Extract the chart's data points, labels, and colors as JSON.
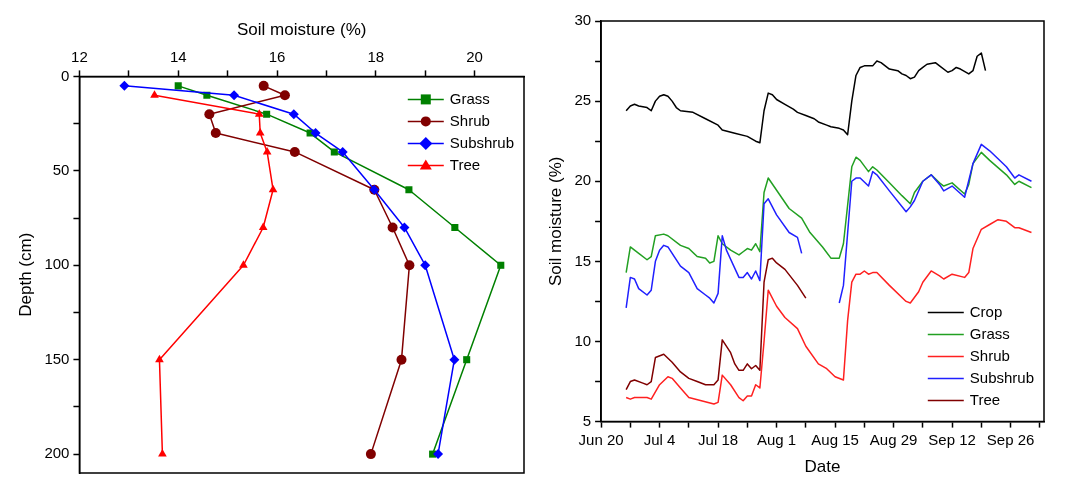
{
  "chart_data": [
    {
      "type": "line",
      "xlabel": "Soil moisture (%)",
      "ylabel": "Depth (cm)",
      "xlim": [
        12,
        21
      ],
      "xticks": [
        12,
        {
          "value": 13,
          "label": null
        },
        14,
        {
          "value": 15,
          "label": null
        },
        16,
        {
          "value": 17,
          "label": null
        },
        18,
        {
          "value": 19,
          "label": null
        },
        20
      ],
      "ylim": [
        210,
        0
      ],
      "yticks": [
        0,
        {
          "value": 25,
          "label": null
        },
        50,
        {
          "value": 75,
          "label": null
        },
        100,
        {
          "value": 125,
          "label": null
        },
        150,
        {
          "value": 175,
          "label": null
        },
        200
      ],
      "grid": false,
      "legend": "top right",
      "line_style": "solid",
      "series": [
        {
          "name": "Grass",
          "color": "#008000",
          "marker": "square",
          "x": [
            14.0,
            14.58,
            15.79,
            16.67,
            17.16,
            18.67,
            19.6,
            20.53,
            19.84,
            19.15
          ],
          "values": [
            5,
            10,
            20,
            30,
            40,
            60,
            80,
            100,
            150,
            200
          ]
        },
        {
          "name": "Shrub",
          "color": "#800000",
          "marker": "circle",
          "x": [
            15.73,
            16.16,
            14.63,
            14.76,
            16.36,
            17.97,
            18.34,
            18.68,
            18.52,
            17.9
          ],
          "values": [
            5,
            10,
            20,
            30,
            40,
            60,
            80,
            100,
            150,
            200
          ]
        },
        {
          "name": "Subshrub",
          "color": "#0000ff",
          "marker": "diamond",
          "x": [
            12.91,
            15.13,
            16.34,
            16.78,
            17.33,
            17.97,
            18.58,
            19.0,
            19.59,
            19.26
          ],
          "values": [
            5,
            10,
            20,
            30,
            40,
            60,
            80,
            100,
            150,
            200
          ]
        },
        {
          "name": "Tree",
          "color": "#ff0000",
          "marker": "triangle",
          "x": [
            13.52,
            15.64,
            15.66,
            15.8,
            15.92,
            15.72,
            15.32,
            13.62,
            13.68
          ],
          "values": [
            10,
            20,
            30,
            40,
            60,
            80,
            100,
            150,
            200
          ]
        }
      ]
    },
    {
      "type": "line",
      "xlabel": "Date",
      "ylabel": "Soil moisture (%)",
      "xlim": [
        "--06-20",
        "--10-04"
      ],
      "xticks": [
        {
          "value": "--06-20",
          "label": "Jun 20"
        },
        {
          "value": "--06-27",
          "label": null
        },
        {
          "value": "--07-04",
          "label": "Jul 4"
        },
        {
          "value": "--07-11",
          "label": null
        },
        {
          "value": "--07-18",
          "label": "Jul 18"
        },
        {
          "value": "--07-25",
          "label": null
        },
        {
          "value": "--08-01",
          "label": "Aug 1"
        },
        {
          "value": "--08-08",
          "label": null
        },
        {
          "value": "--08-15",
          "label": "Aug 15"
        },
        {
          "value": "--08-22",
          "label": null
        },
        {
          "value": "--08-29",
          "label": "Aug 29"
        },
        {
          "value": "--09-05",
          "label": null
        },
        {
          "value": "--09-12",
          "label": "Sep 12"
        },
        {
          "value": "--09-19",
          "label": null
        },
        {
          "value": "--09-26",
          "label": "Sep 26"
        },
        {
          "value": "--10-03",
          "label": null
        }
      ],
      "ylim": [
        5,
        30
      ],
      "yticks": [
        5,
        {
          "value": 7.5,
          "label": null
        },
        10,
        {
          "value": 12.5,
          "label": null
        },
        15,
        {
          "value": 17.5,
          "label": null
        },
        20,
        {
          "value": 22.5,
          "label": null
        },
        25,
        {
          "value": 27.5,
          "label": null
        },
        30
      ],
      "grid": false,
      "legend": "bottom right",
      "marker": "none",
      "line_style": "solid",
      "series": [
        {
          "name": "Crop",
          "color": "#000000",
          "x": [
            "--06-26",
            "--06-27",
            "--06-28",
            "--06-29",
            "--07-01",
            "--07-02",
            "--07-03",
            "--07-04",
            "--07-05",
            "--07-06",
            "--07-07",
            "--07-08",
            "--07-09",
            "--07-12",
            "--07-15",
            "--07-18",
            "--07-19",
            "--07-22",
            "--07-25",
            "--07-27",
            "--07-28",
            "--07-29",
            "--07-30",
            "--07-31",
            "--08-01",
            "--08-03",
            "--08-05",
            "--08-06",
            "--08-08",
            "--08-10",
            "--08-11",
            "--08-13",
            "--08-14",
            "--08-16",
            "--08-17",
            "--08-18",
            "--08-19",
            "--08-20",
            "--08-21",
            "--08-22",
            "--08-24",
            "--08-25",
            "--08-26",
            "--08-27",
            "--08-28",
            "--08-30",
            "--08-31",
            "--09-01",
            "--09-02",
            "--09-03",
            "--09-04",
            "--09-05",
            "--09-06",
            "--09-08",
            "--09-09",
            "--09-11",
            "--09-12",
            "--09-13",
            "--09-14",
            "--09-16",
            "--09-17",
            "--09-18",
            "--09-19",
            "--09-20"
          ],
          "values": [
            24.4,
            24.7,
            24.8,
            24.7,
            24.6,
            24.4,
            25.0,
            25.3,
            25.4,
            25.3,
            25.0,
            24.6,
            24.4,
            24.3,
            23.9,
            23.5,
            23.2,
            23.0,
            22.8,
            22.5,
            22.4,
            24.4,
            25.5,
            25.4,
            25.1,
            24.8,
            24.5,
            24.3,
            24.1,
            23.9,
            23.7,
            23.5,
            23.4,
            23.3,
            23.2,
            22.9,
            25.0,
            26.6,
            27.1,
            27.2,
            27.2,
            27.5,
            27.4,
            27.2,
            27.0,
            26.9,
            26.7,
            26.6,
            26.4,
            26.5,
            26.9,
            27.1,
            27.3,
            27.4,
            27.2,
            26.8,
            26.9,
            27.1,
            27.0,
            26.7,
            26.9,
            27.8,
            28.0,
            26.9
          ]
        },
        {
          "name": "Grass",
          "color": "#22a022",
          "x": [
            "--06-26",
            "--06-27",
            "--06-28",
            "--07-01",
            "--07-02",
            "--07-03",
            "--07-05",
            "--07-06",
            "--07-09",
            "--07-11",
            "--07-13",
            "--07-15",
            "--07-16",
            "--07-17",
            "--07-18",
            "--07-19",
            "--07-21",
            "--07-23",
            "--07-24",
            "--07-25",
            "--07-26",
            "--07-27",
            "--07-28",
            "--07-29",
            "--07-30",
            "--08-04",
            "--08-07",
            "--08-09",
            "--08-12",
            "--08-14",
            "--08-16",
            "--08-17",
            "--08-19",
            "--08-20",
            "--08-21",
            "--08-23",
            "--08-24",
            "--08-25",
            "--08-28",
            "--08-31",
            "--09-02",
            "--09-03",
            "--09-05",
            "--09-07",
            "--09-09",
            "--09-10",
            "--09-12",
            "--09-15",
            "--09-16",
            "--09-17",
            "--09-19",
            "--09-21",
            "--09-25",
            "--09-27",
            "--09-28",
            "--10-01"
          ],
          "values": [
            14.3,
            15.9,
            15.7,
            15.1,
            15.3,
            16.6,
            16.7,
            16.6,
            16.0,
            15.8,
            15.3,
            15.2,
            14.9,
            15.0,
            16.6,
            16.1,
            15.7,
            15.4,
            15.6,
            15.8,
            15.7,
            16.1,
            15.6,
            19.3,
            20.2,
            18.3,
            17.7,
            16.8,
            15.9,
            15.2,
            15.2,
            16.1,
            20.9,
            21.5,
            21.3,
            20.6,
            20.9,
            20.7,
            19.9,
            19.1,
            18.6,
            19.3,
            20.0,
            20.4,
            19.9,
            19.7,
            19.9,
            19.2,
            19.8,
            21.1,
            21.8,
            21.3,
            20.4,
            19.8,
            20.0,
            19.6
          ]
        },
        {
          "name": "Shrub",
          "color": "#ff2020",
          "x": [
            "--06-26",
            "--06-27",
            "--06-28",
            "--07-01",
            "--07-02",
            "--07-04",
            "--07-06",
            "--07-07",
            "--07-09",
            "--07-11",
            "--07-14",
            "--07-17",
            "--07-18",
            "--07-19",
            "--07-21",
            "--07-23",
            "--07-24",
            "--07-25",
            "--07-26",
            "--07-27",
            "--07-28",
            "--07-29",
            "--07-30",
            "--08-01",
            "--08-03",
            "--08-06",
            "--08-08",
            "--08-11",
            "--08-13",
            "--08-15",
            "--08-17",
            "--08-18",
            "--08-19",
            "--08-20",
            "--08-21",
            "--08-22",
            "--08-23",
            "--08-24",
            "--08-25",
            "--08-28",
            "--09-01",
            "--09-02",
            "--09-04",
            "--09-05",
            "--09-07",
            "--09-09",
            "--09-10",
            "--09-12",
            "--09-15",
            "--09-16",
            "--09-17",
            "--09-19",
            "--09-21",
            "--09-23",
            "--09-25",
            "--09-27",
            "--09-28",
            "--10-01"
          ],
          "values": [
            6.5,
            6.4,
            6.5,
            6.5,
            6.4,
            7.3,
            7.8,
            7.7,
            7.1,
            6.5,
            6.3,
            6.1,
            6.2,
            7.9,
            7.3,
            6.5,
            6.3,
            6.6,
            6.6,
            7.3,
            7.1,
            10.0,
            13.2,
            12.2,
            11.5,
            10.8,
            9.7,
            8.6,
            8.3,
            7.8,
            7.6,
            11.3,
            13.7,
            14.2,
            14.2,
            14.4,
            14.2,
            14.3,
            14.3,
            13.5,
            12.5,
            12.4,
            13.1,
            13.7,
            14.4,
            14.1,
            13.9,
            14.2,
            14.0,
            14.3,
            15.8,
            17.0,
            17.3,
            17.6,
            17.5,
            17.1,
            17.1,
            16.8
          ]
        },
        {
          "name": "Subshrub",
          "color": "#2020ff",
          "x": [
            "--06-26",
            "--06-27",
            "--06-28",
            "--06-29",
            "--07-01",
            "--07-02",
            "--07-03",
            "--07-04",
            "--07-05",
            "--07-06",
            "--07-09",
            "--07-11",
            "--07-13",
            "--07-15",
            "--07-16",
            "--07-17",
            "--07-18",
            "--07-19",
            "--07-20",
            "--07-23",
            "--07-24",
            "--07-25",
            "--07-26",
            "--07-27",
            "--07-28",
            "--07-29",
            "--07-30",
            "--08-01",
            "--08-04",
            "--08-06",
            "--08-07",
            "--08-11",
            "--08-16",
            "--08-17",
            "--08-19",
            "--08-20",
            "--08-21",
            "--08-23",
            "--08-24",
            "--08-25",
            "--08-28",
            "--09-01",
            "--09-02",
            "--09-03",
            "--09-05",
            "--09-07",
            "--09-09",
            "--09-10",
            "--09-12",
            "--09-15",
            "--09-17",
            "--09-19",
            "--09-21",
            "--09-25",
            "--09-27",
            "--09-28",
            "--10-01"
          ],
          "values": [
            12.1,
            14.0,
            13.9,
            13.3,
            12.9,
            13.2,
            15.0,
            15.7,
            16.0,
            15.9,
            14.7,
            14.3,
            13.3,
            12.9,
            12.7,
            12.4,
            13.0,
            16.6,
            15.7,
            14.0,
            14.0,
            14.3,
            13.9,
            14.4,
            13.8,
            18.6,
            18.9,
            17.9,
            16.8,
            16.5,
            15.5,
            null,
            12.4,
            13.5,
            20.0,
            20.2,
            20.2,
            19.7,
            20.6,
            20.4,
            19.4,
            18.1,
            18.4,
            18.8,
            20.0,
            20.4,
            19.8,
            19.4,
            19.7,
            19.0,
            21.1,
            22.3,
            21.9,
            20.9,
            20.2,
            20.4,
            20.0
          ]
        },
        {
          "name": "Tree",
          "color": "#800000",
          "x": [
            "--06-26",
            "--06-27",
            "--06-28",
            "--06-30",
            "--07-01",
            "--07-02",
            "--07-03",
            "--07-05",
            "--07-07",
            "--07-09",
            "--07-11",
            "--07-13",
            "--07-15",
            "--07-17",
            "--07-18",
            "--07-19",
            "--07-21",
            "--07-22",
            "--07-23",
            "--07-24",
            "--07-25",
            "--07-26",
            "--07-27",
            "--07-28",
            "--07-29",
            "--07-30",
            "--07-31",
            "--08-01",
            "--08-03",
            "--08-06",
            "--08-08"
          ],
          "values": [
            7.0,
            7.5,
            7.6,
            7.4,
            7.3,
            7.5,
            9.0,
            9.2,
            8.7,
            8.1,
            7.7,
            7.5,
            7.3,
            7.3,
            7.6,
            10.1,
            9.3,
            8.6,
            8.2,
            8.2,
            8.6,
            8.3,
            8.5,
            8.2,
            13.7,
            15.1,
            15.2,
            14.9,
            14.5,
            13.5,
            12.7
          ]
        }
      ]
    }
  ]
}
